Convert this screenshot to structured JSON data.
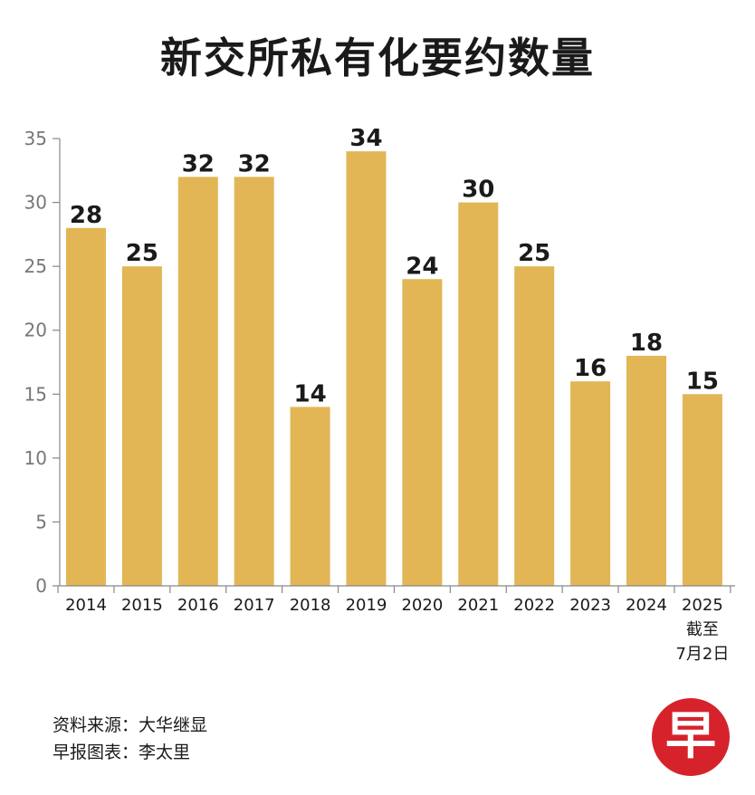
{
  "title": "新交所私有化要约数量",
  "chart_data": {
    "type": "bar",
    "categories": [
      "2014",
      "2015",
      "2016",
      "2017",
      "2018",
      "2019",
      "2020",
      "2021",
      "2022",
      "2023",
      "2024",
      "2025"
    ],
    "category_notes": {
      "2025": [
        "截至",
        "7月2日"
      ]
    },
    "values": [
      28,
      25,
      32,
      32,
      14,
      34,
      24,
      30,
      25,
      16,
      18,
      15
    ],
    "yticks": [
      0,
      5,
      10,
      15,
      20,
      25,
      30,
      35
    ],
    "ylim": [
      0,
      35
    ],
    "bar_color": "#e2b655",
    "grid": false,
    "legend": "none"
  },
  "source": "资料来源：大华继显",
  "credit": "早报图表：李太里",
  "logo_text": "早"
}
